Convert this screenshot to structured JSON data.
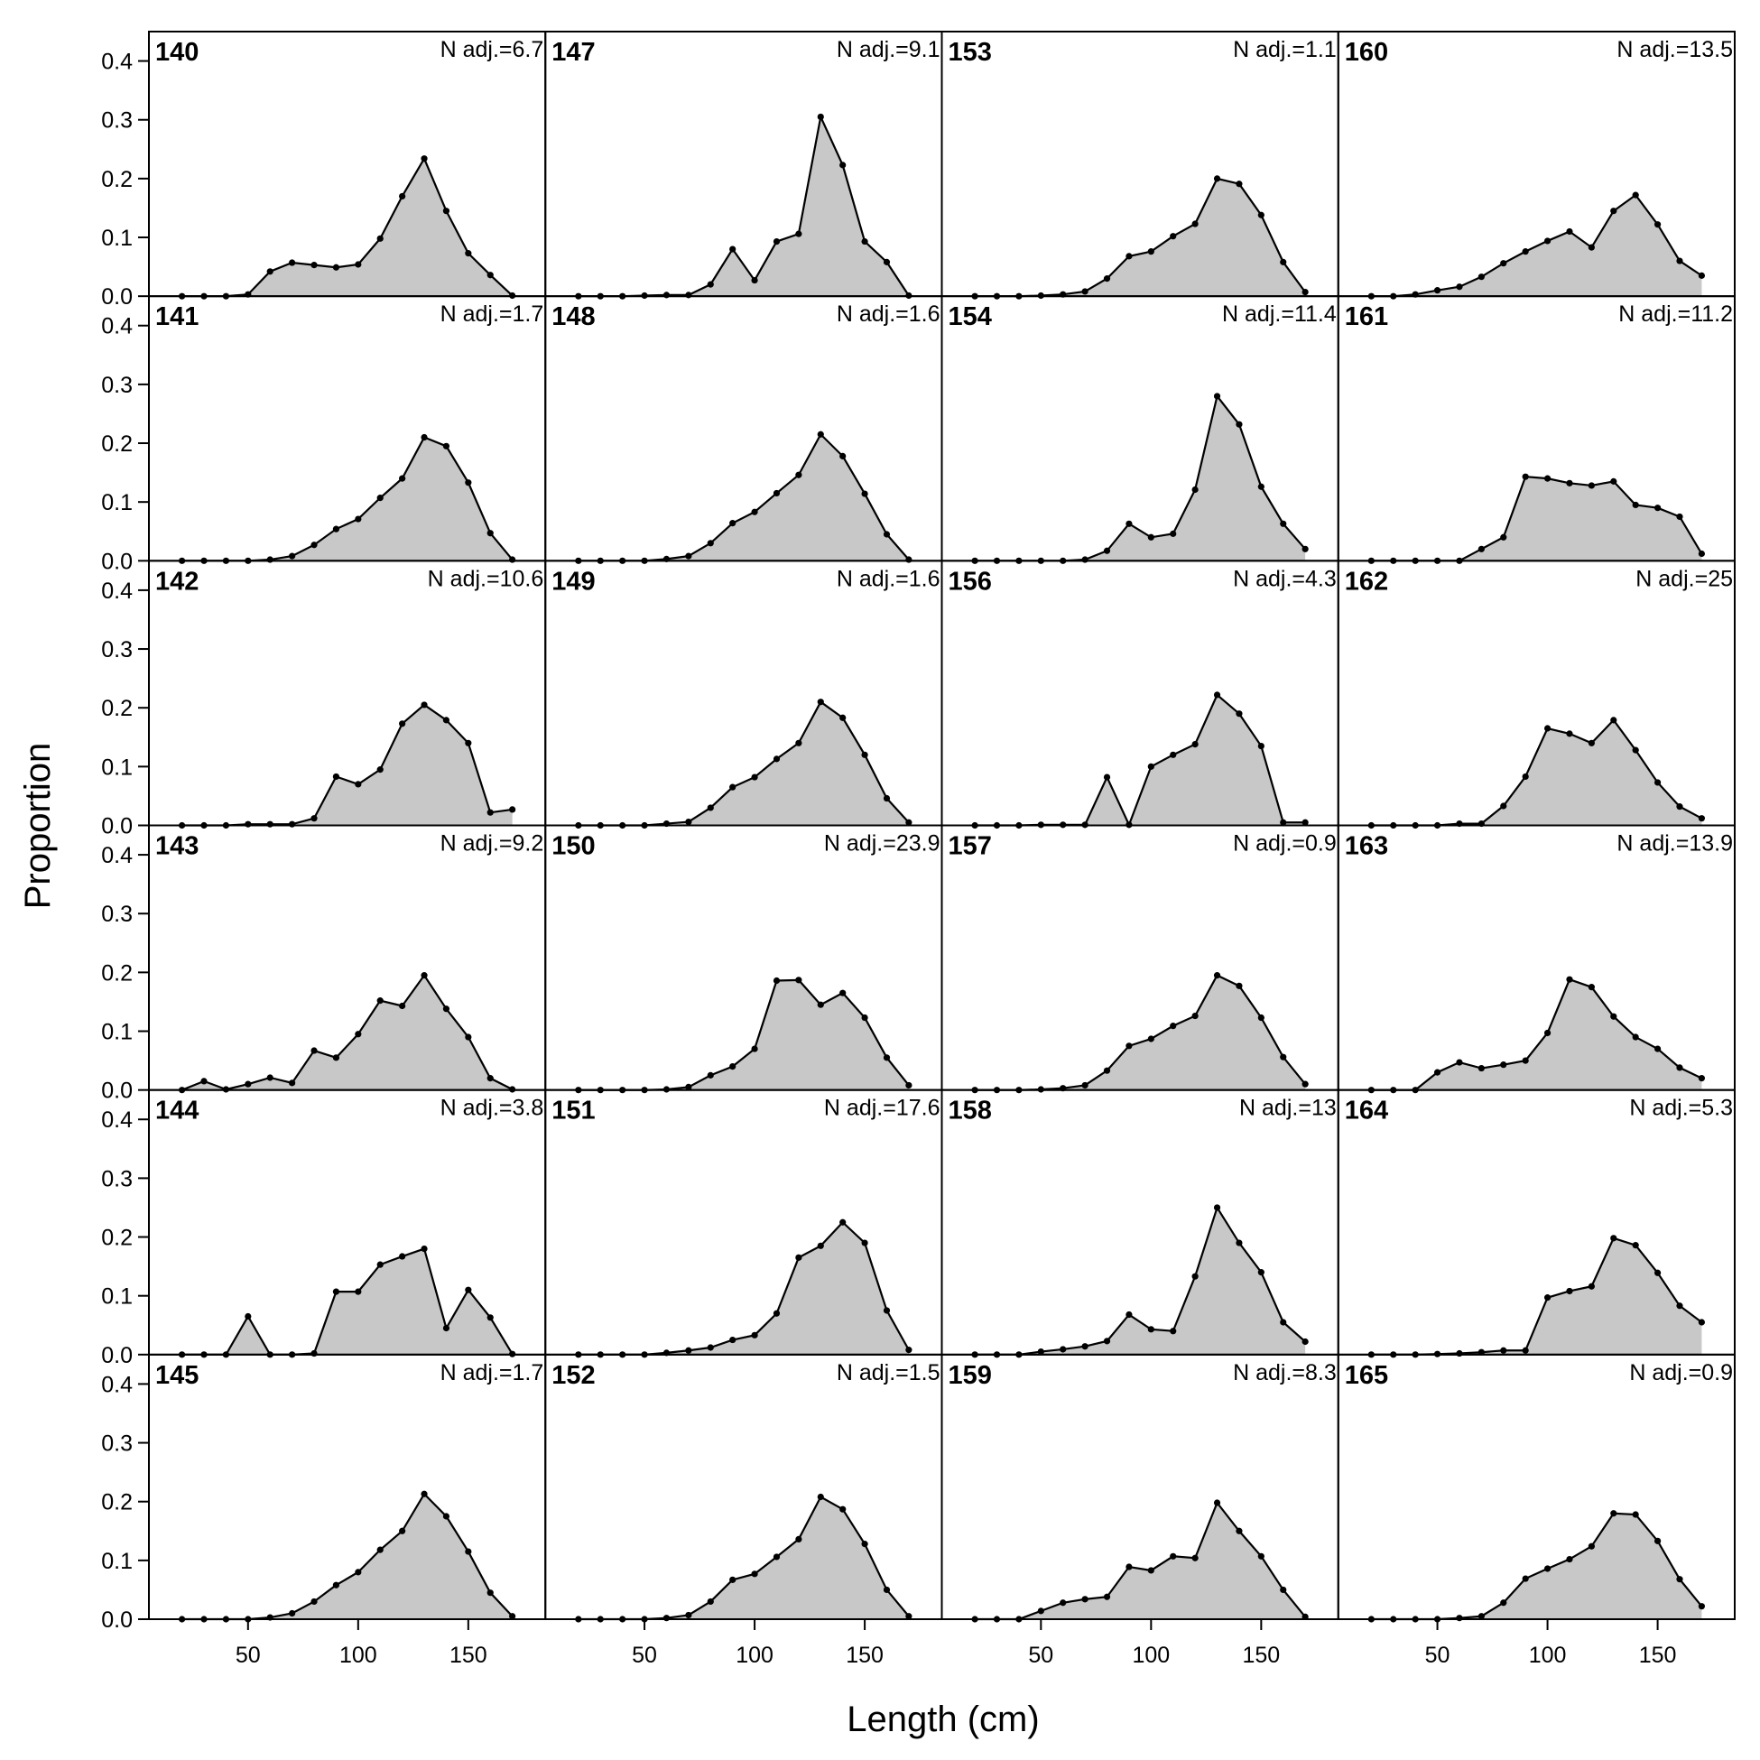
{
  "chart_data": {
    "type": "area",
    "x_label": "Length (cm)",
    "y_label": "Proportion",
    "xlim": [
      5,
      185
    ],
    "ylim": [
      0,
      0.45
    ],
    "xticks": [
      50,
      100,
      150
    ],
    "yticks": [
      {
        "value": 0,
        "label": "0.0"
      },
      0.1,
      0.2,
      0.3,
      0.4
    ],
    "fill": "#c8c8c8",
    "line_color": "#000000",
    "x": [
      20,
      30,
      40,
      50,
      60,
      70,
      80,
      90,
      100,
      110,
      120,
      130,
      140,
      150,
      160,
      170
    ],
    "panels": [
      {
        "title": "140",
        "annotation": "N adj.=6.7",
        "values": [
          0,
          0,
          0,
          0.003,
          0.042,
          0.057,
          0.053,
          0.049,
          0.054,
          0.098,
          0.17,
          0.234,
          0.145,
          0.073,
          0.036,
          0.001
        ]
      },
      {
        "title": "141",
        "annotation": "N adj.=1.7",
        "values": [
          0,
          0,
          0,
          0,
          0.002,
          0.008,
          0.027,
          0.054,
          0.071,
          0.107,
          0.14,
          0.21,
          0.195,
          0.133,
          0.047,
          0.002
        ]
      },
      {
        "title": "142",
        "annotation": "N adj.=10.6",
        "values": [
          0,
          0,
          0,
          0.002,
          0.002,
          0.002,
          0.012,
          0.083,
          0.07,
          0.095,
          0.173,
          0.205,
          0.179,
          0.14,
          0.022,
          0.027
        ]
      },
      {
        "title": "143",
        "annotation": "N adj.=9.2",
        "values": [
          0,
          0.015,
          0.001,
          0.01,
          0.021,
          0.012,
          0.067,
          0.055,
          0.095,
          0.152,
          0.143,
          0.195,
          0.138,
          0.09,
          0.02,
          0.001
        ]
      },
      {
        "title": "144",
        "annotation": "N adj.=3.8",
        "values": [
          0,
          0,
          0,
          0.065,
          0,
          0,
          0.002,
          0.107,
          0.107,
          0.153,
          0.167,
          0.18,
          0.045,
          0.11,
          0.063,
          0.001
        ]
      },
      {
        "title": "145",
        "annotation": "N adj.=1.7",
        "values": [
          0,
          0,
          0,
          0,
          0.003,
          0.01,
          0.03,
          0.058,
          0.08,
          0.118,
          0.15,
          0.213,
          0.175,
          0.115,
          0.045,
          0.005
        ]
      },
      {
        "title": "147",
        "annotation": "N adj.=9.1",
        "values": [
          0,
          0,
          0,
          0.001,
          0.002,
          0.002,
          0.02,
          0.08,
          0.027,
          0.093,
          0.106,
          0.305,
          0.223,
          0.093,
          0.058,
          0.001
        ]
      },
      {
        "title": "148",
        "annotation": "N adj.=1.6",
        "values": [
          0,
          0,
          0,
          0,
          0.003,
          0.008,
          0.03,
          0.064,
          0.083,
          0.115,
          0.146,
          0.215,
          0.178,
          0.114,
          0.045,
          0.002
        ]
      },
      {
        "title": "149",
        "annotation": "N adj.=1.6",
        "values": [
          0,
          0,
          0,
          0,
          0.003,
          0.006,
          0.03,
          0.065,
          0.082,
          0.113,
          0.14,
          0.21,
          0.183,
          0.12,
          0.046,
          0.005
        ]
      },
      {
        "title": "150",
        "annotation": "N adj.=23.9",
        "values": [
          0,
          0,
          0,
          0,
          0.001,
          0.005,
          0.025,
          0.04,
          0.07,
          0.186,
          0.187,
          0.145,
          0.165,
          0.123,
          0.055,
          0.008
        ]
      },
      {
        "title": "151",
        "annotation": "N adj.=17.6",
        "values": [
          0,
          0,
          0,
          0,
          0.003,
          0.007,
          0.012,
          0.025,
          0.033,
          0.07,
          0.165,
          0.185,
          0.225,
          0.19,
          0.075,
          0.008
        ]
      },
      {
        "title": "152",
        "annotation": "N adj.=1.5",
        "values": [
          0,
          0,
          0,
          0,
          0.002,
          0.007,
          0.03,
          0.067,
          0.077,
          0.106,
          0.136,
          0.208,
          0.187,
          0.128,
          0.05,
          0.005
        ]
      },
      {
        "title": "153",
        "annotation": "N adj.=1.1",
        "values": [
          0,
          0,
          0,
          0.001,
          0.003,
          0.008,
          0.03,
          0.068,
          0.076,
          0.102,
          0.123,
          0.2,
          0.191,
          0.138,
          0.058,
          0.007
        ]
      },
      {
        "title": "154",
        "annotation": "N adj.=11.4",
        "values": [
          0,
          0,
          0,
          0,
          0,
          0.002,
          0.017,
          0.063,
          0.04,
          0.046,
          0.121,
          0.28,
          0.232,
          0.126,
          0.063,
          0.02
        ]
      },
      {
        "title": "156",
        "annotation": "N adj.=4.3",
        "values": [
          0,
          0,
          0,
          0.001,
          0.001,
          0.001,
          0.082,
          0.001,
          0.1,
          0.12,
          0.138,
          0.222,
          0.19,
          0.135,
          0.005,
          0.005
        ]
      },
      {
        "title": "157",
        "annotation": "N adj.=0.9",
        "values": [
          0,
          0,
          0,
          0.001,
          0.003,
          0.008,
          0.033,
          0.075,
          0.087,
          0.109,
          0.126,
          0.195,
          0.177,
          0.123,
          0.056,
          0.01
        ]
      },
      {
        "title": "158",
        "annotation": "N adj.=13",
        "values": [
          0,
          0,
          0,
          0.005,
          0.009,
          0.014,
          0.023,
          0.068,
          0.043,
          0.04,
          0.133,
          0.25,
          0.19,
          0.14,
          0.055,
          0.022
        ]
      },
      {
        "title": "159",
        "annotation": "N adj.=8.3",
        "values": [
          0,
          0,
          0,
          0.014,
          0.028,
          0.034,
          0.038,
          0.089,
          0.083,
          0.107,
          0.104,
          0.198,
          0.15,
          0.107,
          0.05,
          0.004
        ]
      },
      {
        "title": "160",
        "annotation": "N adj.=13.5",
        "values": [
          0,
          0,
          0.003,
          0.01,
          0.016,
          0.033,
          0.056,
          0.076,
          0.094,
          0.11,
          0.083,
          0.145,
          0.172,
          0.122,
          0.06,
          0.035
        ]
      },
      {
        "title": "161",
        "annotation": "N adj.=11.2",
        "values": [
          0,
          0,
          0,
          0,
          0,
          0.02,
          0.04,
          0.143,
          0.14,
          0.132,
          0.128,
          0.135,
          0.095,
          0.09,
          0.075,
          0.012
        ]
      },
      {
        "title": "162",
        "annotation": "N adj.=25",
        "values": [
          0,
          0,
          0,
          0,
          0.003,
          0.003,
          0.033,
          0.083,
          0.165,
          0.156,
          0.14,
          0.179,
          0.128,
          0.073,
          0.032,
          0.012
        ]
      },
      {
        "title": "163",
        "annotation": "N adj.=13.9",
        "values": [
          0,
          0,
          0,
          0.03,
          0.047,
          0.037,
          0.043,
          0.05,
          0.097,
          0.188,
          0.175,
          0.125,
          0.09,
          0.07,
          0.038,
          0.02
        ]
      },
      {
        "title": "164",
        "annotation": "N adj.=5.3",
        "values": [
          0,
          0,
          0,
          0.001,
          0.002,
          0.004,
          0.007,
          0.007,
          0.097,
          0.108,
          0.116,
          0.198,
          0.186,
          0.139,
          0.083,
          0.055
        ]
      },
      {
        "title": "165",
        "annotation": "N adj.=0.9",
        "values": [
          0,
          0,
          0,
          0,
          0.002,
          0.005,
          0.028,
          0.069,
          0.086,
          0.102,
          0.124,
          0.18,
          0.178,
          0.133,
          0.068,
          0.022
        ]
      }
    ]
  }
}
